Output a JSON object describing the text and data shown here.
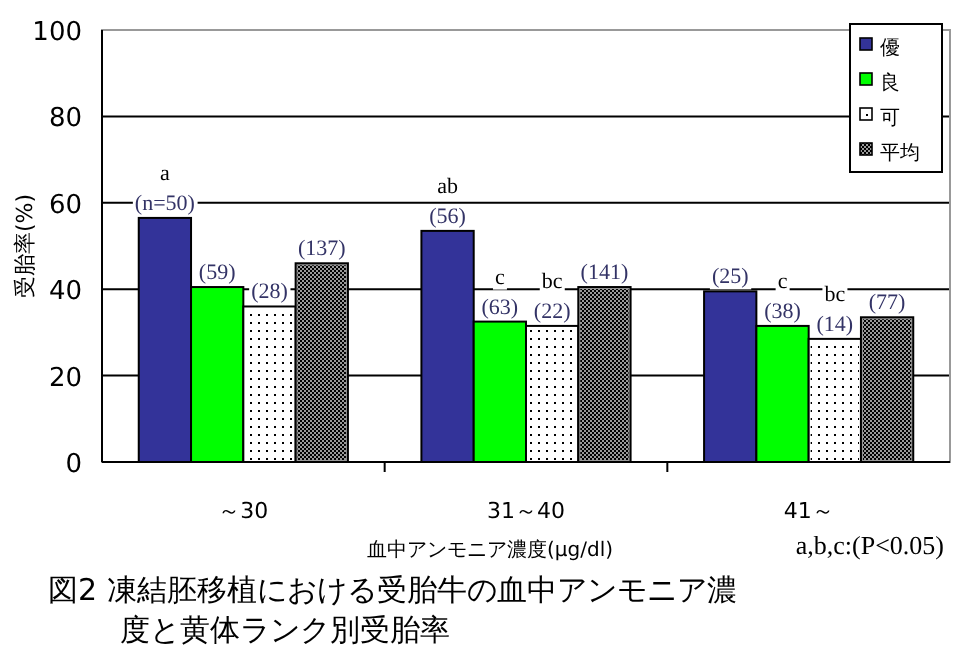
{
  "chart_data": {
    "type": "bar",
    "title": "図2 凍結胚移植における受胎牛の血中アンモニア濃度と黄体ランク別受胎率",
    "xlabel": "血中アンモニア濃度(μg/dl)",
    "ylabel": "受胎率(%)",
    "categories": [
      "～30",
      "31～40",
      "41～"
    ],
    "series": [
      {
        "name": "優",
        "color": "#333399",
        "values": [
          56.5,
          53.5,
          39.5
        ]
      },
      {
        "name": "良",
        "color": "#00ff00",
        "values": [
          40.5,
          32.5,
          31.5
        ]
      },
      {
        "name": "可",
        "color": "#ffffff",
        "values": [
          36,
          31.5,
          28.5
        ]
      },
      {
        "name": "平均",
        "color": "#999999",
        "values": [
          46,
          40.5,
          33.5
        ]
      }
    ],
    "ylim": [
      0,
      100
    ],
    "yticks": [
      0,
      20,
      40,
      60,
      80,
      100
    ],
    "grid": "y",
    "legend": "top right",
    "annotations": [
      "a",
      "(n=50)",
      "(59)",
      "(28)",
      "(137)",
      "ab",
      "(56)",
      "c",
      "(63)",
      "bc",
      "(22)",
      "(141)",
      "(25)",
      "c",
      "(38)",
      "bc",
      "(14)",
      "(77)",
      "a,b,c:(P<0.05)"
    ]
  }
}
